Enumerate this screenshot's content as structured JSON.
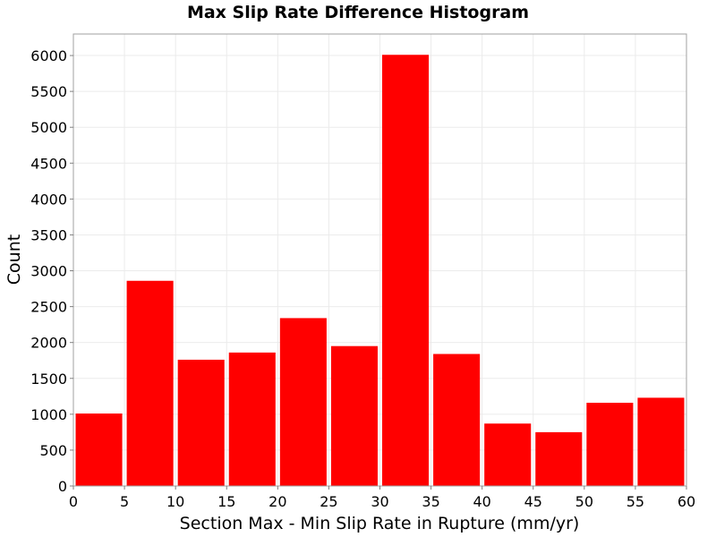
{
  "chart_data": {
    "type": "bar",
    "title": "Max Slip Rate Difference Histogram",
    "xlabel": "Section Max - Min Slip Rate in Rupture (mm/yr)",
    "ylabel": "Count",
    "xlim": [
      0,
      60
    ],
    "ylim": [
      0,
      6300
    ],
    "x_ticks": [
      0,
      5,
      10,
      15,
      20,
      25,
      30,
      35,
      40,
      45,
      50,
      55,
      60
    ],
    "y_ticks": [
      0,
      500,
      1000,
      1500,
      2000,
      2500,
      3000,
      3500,
      4000,
      4500,
      5000,
      5500,
      6000
    ],
    "bins": [
      {
        "start": 0,
        "end": 5,
        "value": 1010
      },
      {
        "start": 5,
        "end": 10,
        "value": 2860
      },
      {
        "start": 10,
        "end": 15,
        "value": 1760
      },
      {
        "start": 15,
        "end": 20,
        "value": 1860
      },
      {
        "start": 20,
        "end": 25,
        "value": 2340
      },
      {
        "start": 25,
        "end": 30,
        "value": 1950
      },
      {
        "start": 30,
        "end": 35,
        "value": 6010
      },
      {
        "start": 35,
        "end": 40,
        "value": 1840
      },
      {
        "start": 40,
        "end": 45,
        "value": 870
      },
      {
        "start": 45,
        "end": 50,
        "value": 750
      },
      {
        "start": 50,
        "end": 55,
        "value": 1160
      },
      {
        "start": 55,
        "end": 60,
        "value": 1230
      }
    ],
    "grid": true,
    "bar_color": "#ff0000",
    "gridline_color": "#ebebeb"
  }
}
